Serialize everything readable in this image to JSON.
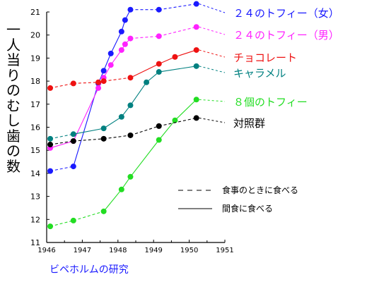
{
  "chart_data": {
    "type": "line",
    "title": "",
    "ylabel": "一人当りのむし歯の数",
    "caption": "ビペホルムの研究",
    "xlim": [
      1946,
      1951
    ],
    "ylim": [
      11,
      21
    ],
    "x_ticks": [
      "1946",
      "1947",
      "1948",
      "1949",
      "1950",
      "1951"
    ],
    "y_ticks": [
      "11",
      "12",
      "13",
      "14",
      "15",
      "16",
      "17",
      "18",
      "19",
      "20",
      "21"
    ],
    "legend_style": [
      {
        "style": "dashed",
        "label": "食事のときに食べる"
      },
      {
        "style": "solid",
        "label": "間食に食べる"
      }
    ],
    "series": [
      {
        "name": "２４のトフィー（女）",
        "color": "#1a1aff",
        "points": [
          [
            1946.1,
            14.1,
            "d"
          ],
          [
            1946.75,
            14.3,
            "s"
          ],
          [
            1947.45,
            17.9,
            "s"
          ],
          [
            1947.6,
            18.45,
            "s"
          ],
          [
            1947.8,
            19.2,
            "s"
          ],
          [
            1948.1,
            20.15,
            "s"
          ],
          [
            1948.2,
            20.65,
            "s"
          ],
          [
            1948.35,
            21.1,
            "d"
          ],
          [
            1949.15,
            21.1,
            "d"
          ],
          [
            1950.2,
            21.35,
            "d"
          ]
        ]
      },
      {
        "name": "２４のトフィー（男）",
        "color": "#ff22ff",
        "points": [
          [
            1946.1,
            15.1,
            "s"
          ],
          [
            1946.75,
            15.4,
            "s"
          ],
          [
            1947.45,
            17.7,
            "s"
          ],
          [
            1947.6,
            18.15,
            "s"
          ],
          [
            1947.8,
            18.7,
            "s"
          ],
          [
            1948.1,
            19.35,
            "s"
          ],
          [
            1948.2,
            19.6,
            "s"
          ],
          [
            1948.35,
            19.85,
            "d"
          ],
          [
            1949.15,
            19.95,
            "d"
          ],
          [
            1950.2,
            20.35,
            "d"
          ]
        ]
      },
      {
        "name": "チョコレート",
        "color": "#ee1111",
        "points": [
          [
            1946.1,
            17.7,
            "d"
          ],
          [
            1946.75,
            17.9,
            "d"
          ],
          [
            1947.45,
            17.95,
            "d"
          ],
          [
            1947.6,
            18.0,
            "d"
          ],
          [
            1948.35,
            18.15,
            "s"
          ],
          [
            1949.15,
            18.75,
            "s"
          ],
          [
            1949.6,
            19.05,
            "s"
          ],
          [
            1950.2,
            19.35,
            "s"
          ]
        ]
      },
      {
        "name": "キャラメル",
        "color": "#008080",
        "points": [
          [
            1946.1,
            15.5,
            "d"
          ],
          [
            1946.75,
            15.7,
            "s"
          ],
          [
            1947.6,
            15.95,
            "s"
          ],
          [
            1948.1,
            16.45,
            "s"
          ],
          [
            1948.35,
            16.95,
            "s"
          ],
          [
            1948.8,
            17.95,
            "s"
          ],
          [
            1949.15,
            18.4,
            "s"
          ],
          [
            1950.2,
            18.65,
            "d"
          ]
        ]
      },
      {
        "name": "８個のトフィー",
        "color": "#22dd22",
        "points": [
          [
            1946.1,
            11.7,
            "d"
          ],
          [
            1946.75,
            11.95,
            "d"
          ],
          [
            1947.6,
            12.35,
            "s"
          ],
          [
            1948.1,
            13.3,
            "s"
          ],
          [
            1948.35,
            13.85,
            "s"
          ],
          [
            1949.15,
            15.45,
            "s"
          ],
          [
            1949.6,
            16.3,
            "s"
          ],
          [
            1950.2,
            17.2,
            "s"
          ]
        ]
      },
      {
        "name": "対照群",
        "color": "#000000",
        "points": [
          [
            1946.1,
            15.25,
            "d"
          ],
          [
            1946.75,
            15.4,
            "d"
          ],
          [
            1947.6,
            15.5,
            "d"
          ],
          [
            1948.35,
            15.65,
            "d"
          ],
          [
            1949.15,
            16.05,
            "d"
          ],
          [
            1950.2,
            16.4,
            "d"
          ]
        ]
      }
    ]
  },
  "colors": {
    "axis": "#000000",
    "caption": "#1a1aff"
  }
}
